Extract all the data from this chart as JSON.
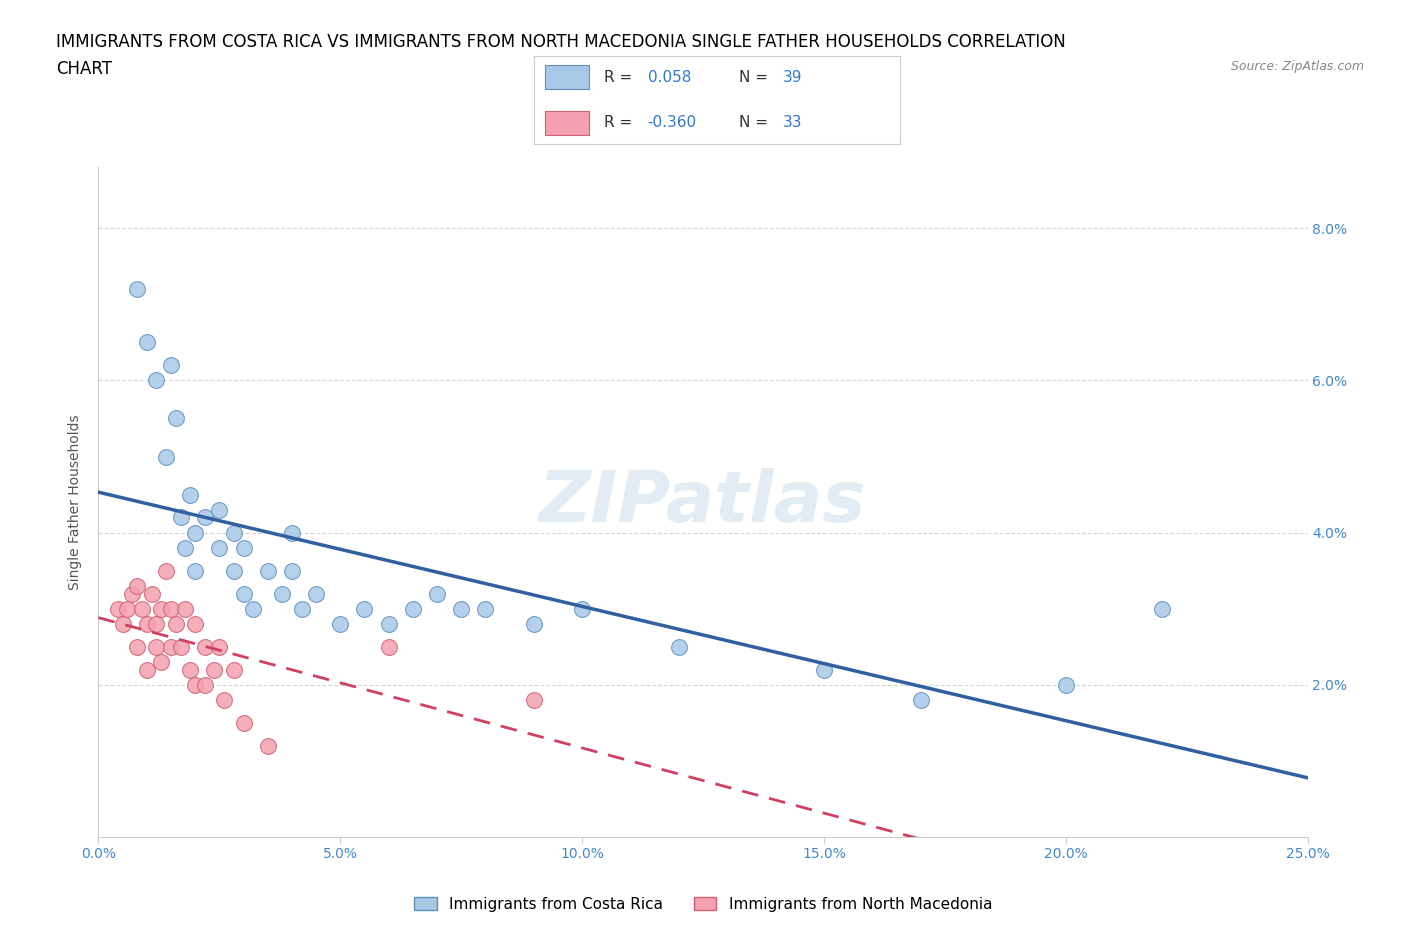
{
  "title_line1": "IMMIGRANTS FROM COSTA RICA VS IMMIGRANTS FROM NORTH MACEDONIA SINGLE FATHER HOUSEHOLDS CORRELATION",
  "title_line2": "CHART",
  "source": "Source: ZipAtlas.com",
  "ylabel": "Single Father Households",
  "xlim": [
    0.0,
    0.25
  ],
  "ylim": [
    0.0,
    0.088
  ],
  "xticks": [
    0.0,
    0.05,
    0.1,
    0.15,
    0.2,
    0.25
  ],
  "xtick_labels": [
    "0.0%",
    "5.0%",
    "10.0%",
    "15.0%",
    "20.0%",
    "25.0%"
  ],
  "yticks": [
    0.0,
    0.02,
    0.04,
    0.06,
    0.08
  ],
  "ytick_labels": [
    "",
    "2.0%",
    "4.0%",
    "6.0%",
    "8.0%"
  ],
  "legend_label1": "Immigrants from Costa Rica",
  "legend_label2": "Immigrants from North Macedonia",
  "R1": 0.058,
  "N1": 39,
  "R2": -0.36,
  "N2": 33,
  "color1": "#a8c8e8",
  "color2": "#f4a0b0",
  "color1_edge": "#6090c0",
  "color2_edge": "#d06070",
  "color1_line": "#3060a0",
  "color2_line": "#d04060",
  "watermark_text": "ZIPatlas",
  "blue_scatter_x": [
    0.008,
    0.01,
    0.012,
    0.014,
    0.015,
    0.016,
    0.017,
    0.018,
    0.019,
    0.02,
    0.02,
    0.022,
    0.025,
    0.025,
    0.028,
    0.028,
    0.03,
    0.03,
    0.032,
    0.035,
    0.038,
    0.04,
    0.04,
    0.042,
    0.045,
    0.05,
    0.055,
    0.06,
    0.065,
    0.07,
    0.075,
    0.08,
    0.09,
    0.1,
    0.12,
    0.15,
    0.17,
    0.2,
    0.22
  ],
  "blue_scatter_y": [
    0.072,
    0.065,
    0.06,
    0.05,
    0.062,
    0.055,
    0.042,
    0.038,
    0.045,
    0.04,
    0.035,
    0.042,
    0.038,
    0.043,
    0.04,
    0.035,
    0.032,
    0.038,
    0.03,
    0.035,
    0.032,
    0.04,
    0.035,
    0.03,
    0.032,
    0.028,
    0.03,
    0.028,
    0.03,
    0.032,
    0.03,
    0.03,
    0.028,
    0.03,
    0.025,
    0.022,
    0.018,
    0.02,
    0.03
  ],
  "pink_scatter_x": [
    0.004,
    0.005,
    0.006,
    0.007,
    0.008,
    0.008,
    0.009,
    0.01,
    0.01,
    0.011,
    0.012,
    0.012,
    0.013,
    0.013,
    0.014,
    0.015,
    0.015,
    0.016,
    0.017,
    0.018,
    0.019,
    0.02,
    0.02,
    0.022,
    0.022,
    0.024,
    0.025,
    0.026,
    0.028,
    0.03,
    0.035,
    0.06,
    0.09
  ],
  "pink_scatter_y": [
    0.03,
    0.028,
    0.03,
    0.032,
    0.033,
    0.025,
    0.03,
    0.028,
    0.022,
    0.032,
    0.028,
    0.025,
    0.03,
    0.023,
    0.035,
    0.03,
    0.025,
    0.028,
    0.025,
    0.03,
    0.022,
    0.028,
    0.02,
    0.025,
    0.02,
    0.022,
    0.025,
    0.018,
    0.022,
    0.015,
    0.012,
    0.025,
    0.018
  ],
  "grid_color": "#cccccc",
  "background_color": "#ffffff",
  "title_fontsize": 12,
  "axis_label_fontsize": 10,
  "tick_fontsize": 10,
  "legend_fontsize": 11
}
